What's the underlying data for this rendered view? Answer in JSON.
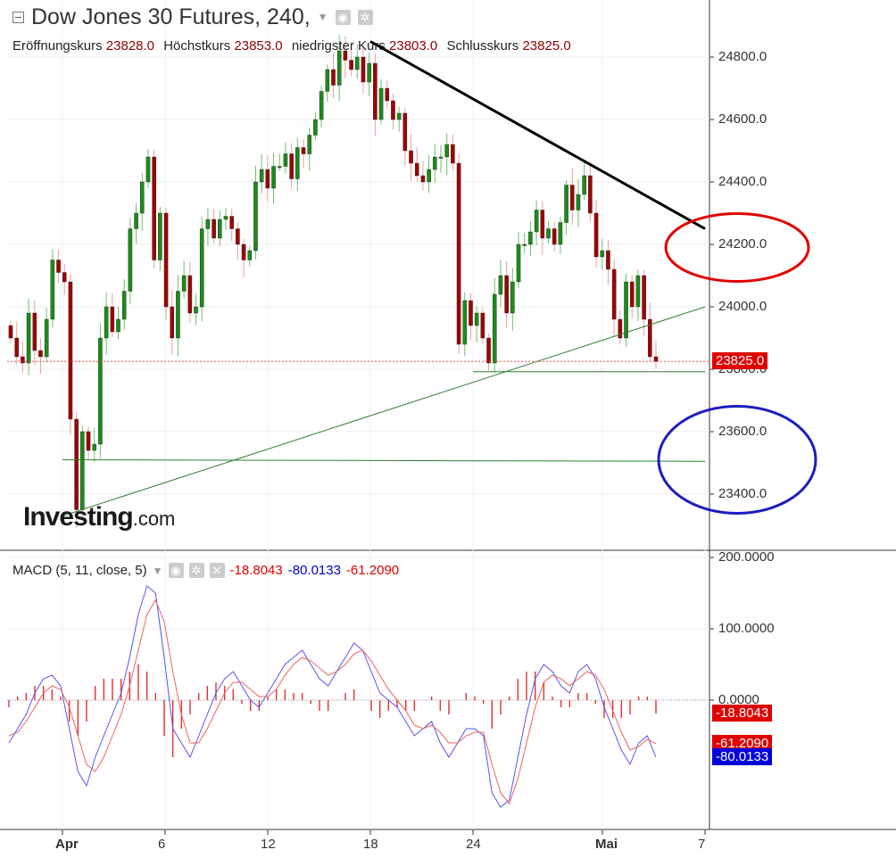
{
  "header": {
    "title": "Dow Jones 30 Futures, 240,",
    "ohlc": [
      {
        "label": "Eröffnungskurs",
        "value": "23828.0"
      },
      {
        "label": "Höchstkurs",
        "value": "23853.0"
      },
      {
        "label": "niedrigster Kurs",
        "value": "23803.0"
      },
      {
        "label": "Schlusskurs",
        "value": "23825.0"
      }
    ]
  },
  "logo": {
    "main": "Investing",
    "suffix": ".com"
  },
  "macd_header": {
    "label": "MACD (5, 11, close, 5)",
    "hist": "-18.8043",
    "macd": "-80.0133",
    "signal": "-61.2090"
  },
  "colors": {
    "up": "#1a8c1a",
    "down": "#a00000",
    "macd_line": "#5555ee",
    "signal_line": "#f06060",
    "hist": "#e03030",
    "last_price_tag": "#e00000"
  },
  "chart_data": [
    {
      "type": "candlestick",
      "title": "Dow Jones 30 Futures, 240,",
      "ylim": [
        23240,
        24920
      ],
      "y_ticks": [
        "24800.0",
        "24600.0",
        "24400.0",
        "24200.0",
        "24000.0",
        "23800.0",
        "23600.0",
        "23400.0"
      ],
      "y_tick_values": [
        24800,
        24600,
        24400,
        24200,
        24000,
        23800,
        23600,
        23400
      ],
      "x_ticks": [
        "Apr",
        "6",
        "12",
        "18",
        "24",
        "Mai",
        "7"
      ],
      "last_price": "23825.0",
      "closes": [
        23900,
        23840,
        23820,
        23980,
        23860,
        23840,
        23960,
        24150,
        24110,
        24080,
        23640,
        23350,
        23600,
        23540,
        23560,
        23900,
        24000,
        23920,
        23960,
        24050,
        24250,
        24300,
        24400,
        24480,
        24150,
        24300,
        24000,
        23900,
        24050,
        24100,
        23980,
        24000,
        24250,
        24280,
        24220,
        24280,
        24290,
        24250,
        24200,
        24150,
        24180,
        24400,
        24440,
        24380,
        24450,
        24450,
        24490,
        24410,
        24510,
        24490,
        24550,
        24600,
        24690,
        24760,
        24710,
        24820,
        24790,
        24760,
        24800,
        24720,
        24780,
        24600,
        24700,
        24660,
        24600,
        24620,
        24500,
        24460,
        24420,
        24400,
        24440,
        24480,
        24480,
        24520,
        24460,
        23880,
        24020,
        23940,
        23980,
        23900,
        23820,
        24040,
        24100,
        23980,
        24080,
        24200,
        24200,
        24240,
        24310,
        24220,
        24250,
        24200,
        24270,
        24390,
        24310,
        24360,
        24420,
        24300,
        24160,
        24180,
        24120,
        23960,
        23900,
        24080,
        24000,
        24100,
        23960,
        23840,
        23825
      ],
      "trendlines": [
        {
          "name": "resistance",
          "from": [
            "18",
            24850
          ],
          "to": [
            "7",
            24250
          ],
          "color": "#000000"
        },
        {
          "name": "rising-support",
          "from": [
            "Apr",
            23330
          ],
          "to": [
            "7",
            24000
          ],
          "color": "#2e7d2e"
        },
        {
          "name": "support-low",
          "from": [
            "Apr",
            23510
          ],
          "to": [
            "7",
            23505
          ],
          "color": "#2e7d2e"
        },
        {
          "name": "support-recent",
          "from": [
            "24",
            23792
          ],
          "to": [
            "7",
            23792
          ],
          "color": "#2e7d2e"
        }
      ],
      "annotations": [
        {
          "shape": "ellipse",
          "color": "#e00000",
          "center": 24190
        },
        {
          "shape": "ellipse",
          "color": "#1c1cc0",
          "center": 23510
        }
      ]
    },
    {
      "type": "macd",
      "title": "MACD (5, 11, close, 5)",
      "ylim": [
        -165,
        205
      ],
      "y_ticks": [
        "200.0000",
        "100.0000",
        "0.0000"
      ],
      "y_tick_values": [
        200,
        100,
        0
      ],
      "series": [
        {
          "name": "MACD",
          "values": [
            -60,
            -40,
            -20,
            10,
            30,
            35,
            20,
            -40,
            -100,
            -120,
            -80,
            -50,
            -20,
            10,
            60,
            120,
            160,
            150,
            60,
            -40,
            -60,
            -80,
            -50,
            -20,
            10,
            30,
            40,
            20,
            0,
            -10,
            10,
            30,
            50,
            60,
            70,
            50,
            30,
            20,
            40,
            60,
            80,
            70,
            40,
            10,
            0,
            -10,
            -30,
            -50,
            -40,
            -30,
            -60,
            -80,
            -60,
            -40,
            -40,
            -50,
            -130,
            -150,
            -140,
            -80,
            -20,
            30,
            50,
            40,
            20,
            10,
            40,
            50,
            30,
            -10,
            -40,
            -70,
            -90,
            -60,
            -50,
            -80
          ]
        },
        {
          "name": "Signal",
          "values": [
            -50,
            -45,
            -30,
            -10,
            10,
            20,
            15,
            -10,
            -50,
            -90,
            -100,
            -80,
            -50,
            -20,
            20,
            70,
            120,
            140,
            110,
            40,
            -20,
            -60,
            -60,
            -40,
            -15,
            10,
            25,
            25,
            15,
            5,
            5,
            15,
            35,
            50,
            60,
            55,
            45,
            35,
            40,
            50,
            65,
            70,
            55,
            35,
            15,
            0,
            -15,
            -35,
            -40,
            -35,
            -45,
            -60,
            -60,
            -50,
            -45,
            -45,
            -90,
            -130,
            -145,
            -110,
            -60,
            -10,
            25,
            35,
            30,
            20,
            30,
            40,
            35,
            15,
            -15,
            -45,
            -70,
            -65,
            -55,
            -61
          ]
        },
        {
          "name": "Histogram",
          "values": [
            -10,
            5,
            10,
            20,
            20,
            15,
            5,
            -30,
            -50,
            -30,
            20,
            30,
            30,
            30,
            40,
            50,
            40,
            10,
            -50,
            -80,
            -40,
            -20,
            10,
            20,
            25,
            20,
            15,
            -5,
            -15,
            -15,
            5,
            15,
            15,
            10,
            10,
            -5,
            -15,
            -15,
            0,
            10,
            15,
            0,
            -15,
            -25,
            -15,
            -10,
            -15,
            -15,
            0,
            5,
            -15,
            -20,
            0,
            10,
            5,
            -5,
            -40,
            -20,
            5,
            30,
            40,
            40,
            25,
            5,
            -10,
            -10,
            10,
            10,
            -5,
            -25,
            -25,
            -25,
            -20,
            5,
            5,
            -19
          ]
        }
      ],
      "last_values": [
        "-18.8043",
        "-61.2090",
        "-80.0133"
      ]
    }
  ]
}
